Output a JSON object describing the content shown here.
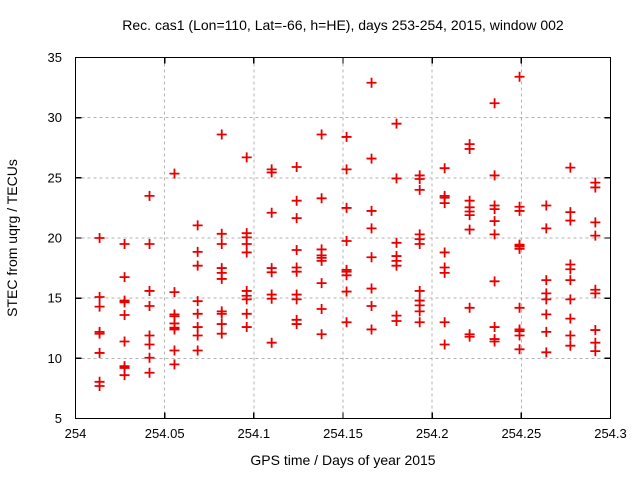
{
  "window": {
    "title": "Rec. cas1 (Lon=110, Lat=-66, h=HE), days 253-254, 2015, window 002"
  },
  "chart_data": {
    "type": "scatter",
    "title": "Rec. cas1 (Lon=110, Lat=-66, h=HE), days 253-254, 2015, window 002",
    "xlabel": "GPS time / Days of year 2015",
    "ylabel": "STEC from uqrg / TECUs",
    "xlim": [
      254.0,
      254.3
    ],
    "ylim": [
      5,
      35
    ],
    "xticks": [
      254.0,
      254.05,
      254.1,
      254.15,
      254.2,
      254.25,
      254.3
    ],
    "xtick_labels": [
      "254",
      "254.05",
      "254.1",
      "254.15",
      "254.2",
      "254.25",
      "254.3"
    ],
    "yticks": [
      5,
      10,
      15,
      20,
      25,
      30,
      35
    ],
    "ytick_labels": [
      "5",
      "10",
      "15",
      "20",
      "25",
      "30",
      "35"
    ],
    "grid": true,
    "legend_position": "none",
    "marker": "plus",
    "marker_color": "#e60000",
    "grid_color": "#b3b3b3",
    "axis_color": "#000000",
    "points": [
      [
        254.0135,
        20.0
      ],
      [
        254.0135,
        15.1
      ],
      [
        254.0135,
        14.3
      ],
      [
        254.0135,
        12.2
      ],
      [
        254.0135,
        12.05
      ],
      [
        254.0135,
        10.45
      ],
      [
        254.0135,
        8.05
      ],
      [
        254.0135,
        7.7
      ],
      [
        254.0275,
        19.5
      ],
      [
        254.0275,
        16.75
      ],
      [
        254.0275,
        14.8
      ],
      [
        254.0275,
        14.65
      ],
      [
        254.0275,
        13.6
      ],
      [
        254.0275,
        11.4
      ],
      [
        254.0275,
        9.35
      ],
      [
        254.0275,
        9.2
      ],
      [
        254.0275,
        8.6
      ],
      [
        254.0415,
        23.5
      ],
      [
        254.0415,
        19.5
      ],
      [
        254.0415,
        15.6
      ],
      [
        254.0415,
        14.35
      ],
      [
        254.0415,
        11.9
      ],
      [
        254.0415,
        11.15
      ],
      [
        254.0415,
        10.05
      ],
      [
        254.0415,
        8.8
      ],
      [
        254.0555,
        25.35
      ],
      [
        254.0555,
        15.5
      ],
      [
        254.0555,
        13.65
      ],
      [
        254.0555,
        13.5
      ],
      [
        254.0555,
        12.9
      ],
      [
        254.0555,
        12.55
      ],
      [
        254.0555,
        12.4
      ],
      [
        254.0555,
        10.65
      ],
      [
        254.0555,
        9.5
      ],
      [
        254.0685,
        21.05
      ],
      [
        254.0685,
        18.85
      ],
      [
        254.0685,
        17.7
      ],
      [
        254.0685,
        14.75
      ],
      [
        254.0685,
        13.7
      ],
      [
        254.0685,
        12.6
      ],
      [
        254.0685,
        11.9
      ],
      [
        254.0685,
        10.65
      ],
      [
        254.082,
        28.6
      ],
      [
        254.082,
        20.35
      ],
      [
        254.082,
        19.5
      ],
      [
        254.082,
        17.5
      ],
      [
        254.082,
        17.1
      ],
      [
        254.082,
        16.6
      ],
      [
        254.082,
        13.9
      ],
      [
        254.082,
        13.7
      ],
      [
        254.082,
        12.85
      ],
      [
        254.082,
        12.05
      ],
      [
        254.096,
        26.7
      ],
      [
        254.096,
        20.4
      ],
      [
        254.096,
        20.05
      ],
      [
        254.096,
        19.5
      ],
      [
        254.096,
        18.8
      ],
      [
        254.096,
        15.6
      ],
      [
        254.096,
        15.2
      ],
      [
        254.096,
        14.9
      ],
      [
        254.096,
        13.7
      ],
      [
        254.096,
        12.6
      ],
      [
        254.11,
        25.7
      ],
      [
        254.11,
        25.45
      ],
      [
        254.11,
        22.1
      ],
      [
        254.11,
        17.5
      ],
      [
        254.11,
        17.15
      ],
      [
        254.11,
        15.3
      ],
      [
        254.11,
        14.95
      ],
      [
        254.11,
        11.3
      ],
      [
        254.124,
        25.9
      ],
      [
        254.124,
        23.1
      ],
      [
        254.124,
        21.65
      ],
      [
        254.124,
        19.0
      ],
      [
        254.124,
        17.55
      ],
      [
        254.124,
        17.2
      ],
      [
        254.124,
        15.3
      ],
      [
        254.124,
        14.9
      ],
      [
        254.124,
        13.2
      ],
      [
        254.124,
        12.85
      ],
      [
        254.138,
        28.6
      ],
      [
        254.138,
        23.3
      ],
      [
        254.138,
        19.05
      ],
      [
        254.138,
        18.55
      ],
      [
        254.138,
        18.35
      ],
      [
        254.138,
        18.1
      ],
      [
        254.138,
        16.25
      ],
      [
        254.138,
        14.1
      ],
      [
        254.138,
        12.0
      ],
      [
        254.152,
        28.4
      ],
      [
        254.152,
        25.7
      ],
      [
        254.152,
        22.5
      ],
      [
        254.152,
        19.75
      ],
      [
        254.152,
        17.35
      ],
      [
        254.152,
        17.2
      ],
      [
        254.152,
        16.9
      ],
      [
        254.152,
        15.55
      ],
      [
        254.152,
        13.0
      ],
      [
        254.166,
        32.9
      ],
      [
        254.166,
        26.6
      ],
      [
        254.166,
        22.25
      ],
      [
        254.166,
        20.8
      ],
      [
        254.166,
        18.4
      ],
      [
        254.166,
        15.8
      ],
      [
        254.166,
        14.35
      ],
      [
        254.166,
        12.4
      ],
      [
        254.18,
        29.5
      ],
      [
        254.18,
        24.95
      ],
      [
        254.18,
        19.6
      ],
      [
        254.18,
        18.5
      ],
      [
        254.18,
        18.1
      ],
      [
        254.18,
        17.7
      ],
      [
        254.18,
        13.55
      ],
      [
        254.18,
        13.1
      ],
      [
        254.193,
        25.2
      ],
      [
        254.193,
        24.9
      ],
      [
        254.193,
        24.0
      ],
      [
        254.193,
        20.3
      ],
      [
        254.193,
        19.9
      ],
      [
        254.193,
        19.5
      ],
      [
        254.193,
        15.6
      ],
      [
        254.193,
        14.8
      ],
      [
        254.193,
        14.4
      ],
      [
        254.193,
        13.9
      ],
      [
        254.193,
        13.0
      ],
      [
        254.207,
        25.8
      ],
      [
        254.207,
        23.5
      ],
      [
        254.207,
        23.35
      ],
      [
        254.207,
        22.9
      ],
      [
        254.207,
        18.8
      ],
      [
        254.207,
        17.55
      ],
      [
        254.207,
        17.1
      ],
      [
        254.207,
        13.0
      ],
      [
        254.207,
        11.15
      ],
      [
        254.221,
        27.8
      ],
      [
        254.221,
        27.4
      ],
      [
        254.221,
        23.1
      ],
      [
        254.221,
        22.55
      ],
      [
        254.221,
        22.2
      ],
      [
        254.221,
        21.9
      ],
      [
        254.221,
        20.7
      ],
      [
        254.221,
        14.2
      ],
      [
        254.221,
        12.0
      ],
      [
        254.221,
        11.8
      ],
      [
        254.235,
        31.2
      ],
      [
        254.235,
        25.2
      ],
      [
        254.235,
        22.7
      ],
      [
        254.235,
        22.4
      ],
      [
        254.235,
        21.4
      ],
      [
        254.235,
        20.3
      ],
      [
        254.235,
        16.4
      ],
      [
        254.235,
        12.6
      ],
      [
        254.235,
        11.6
      ],
      [
        254.235,
        11.4
      ],
      [
        254.249,
        33.4
      ],
      [
        254.249,
        22.6
      ],
      [
        254.249,
        22.25
      ],
      [
        254.249,
        19.45
      ],
      [
        254.249,
        19.3
      ],
      [
        254.249,
        19.1
      ],
      [
        254.249,
        14.2
      ],
      [
        254.249,
        12.4
      ],
      [
        254.249,
        12.25
      ],
      [
        254.249,
        11.9
      ],
      [
        254.249,
        10.75
      ],
      [
        254.264,
        22.7
      ],
      [
        254.264,
        20.8
      ],
      [
        254.264,
        16.5
      ],
      [
        254.264,
        15.4
      ],
      [
        254.264,
        14.9
      ],
      [
        254.264,
        13.65
      ],
      [
        254.264,
        12.2
      ],
      [
        254.264,
        10.5
      ],
      [
        254.2775,
        25.85
      ],
      [
        254.2775,
        22.15
      ],
      [
        254.2775,
        21.45
      ],
      [
        254.2775,
        17.8
      ],
      [
        254.2775,
        17.4
      ],
      [
        254.2775,
        16.5
      ],
      [
        254.2775,
        14.9
      ],
      [
        254.2775,
        13.3
      ],
      [
        254.2775,
        11.9
      ],
      [
        254.2775,
        11.05
      ],
      [
        254.2915,
        24.6
      ],
      [
        254.2915,
        24.2
      ],
      [
        254.2915,
        21.3
      ],
      [
        254.2915,
        20.2
      ],
      [
        254.2915,
        15.7
      ],
      [
        254.2915,
        15.4
      ],
      [
        254.2915,
        12.35
      ],
      [
        254.2915,
        11.3
      ],
      [
        254.2915,
        10.6
      ]
    ]
  }
}
